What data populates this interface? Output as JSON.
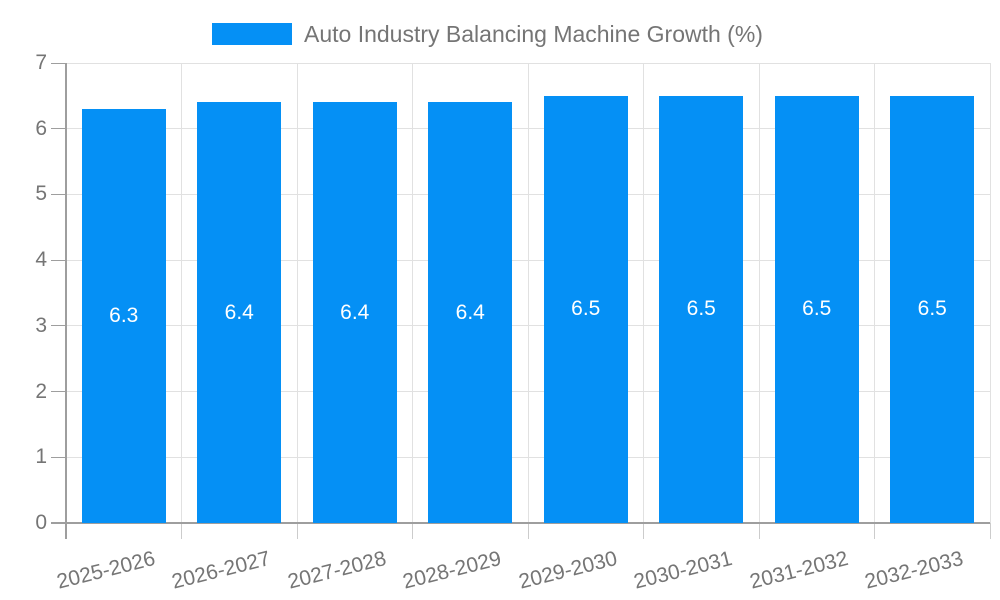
{
  "legend": {
    "label": "Auto Industry Balancing Machine Growth (%)",
    "swatch_color": "#0590F5"
  },
  "chart_data": {
    "type": "bar",
    "title": "Auto Industry Balancing Machine Growth (%)",
    "categories": [
      "2025-2026",
      "2026-2027",
      "2027-2028",
      "2028-2029",
      "2029-2030",
      "2030-2031",
      "2031-2032",
      "2032-2033"
    ],
    "values": [
      6.3,
      6.4,
      6.4,
      6.4,
      6.5,
      6.5,
      6.5,
      6.5
    ],
    "value_labels": [
      "6.3",
      "6.4",
      "6.4",
      "6.4",
      "6.5",
      "6.5",
      "6.5",
      "6.5"
    ],
    "xlabel": "",
    "ylabel": "",
    "ylim": [
      0,
      7
    ],
    "yticks": [
      0,
      1,
      2,
      3,
      4,
      5,
      6,
      7
    ],
    "ytick_labels": [
      "0",
      "1",
      "2",
      "3",
      "4",
      "5",
      "6",
      "7"
    ],
    "grid": true,
    "legend_position": "top-center",
    "x_label_rotation_deg": -14
  },
  "colors": {
    "bar": "#0590F5",
    "value_label": "#ffffff",
    "tick_text": "#757575",
    "gridline": "#e1e1e1",
    "axis_line": "#9e9e9e",
    "x_tick_stub": "#cccccc",
    "background": "#ffffff"
  }
}
